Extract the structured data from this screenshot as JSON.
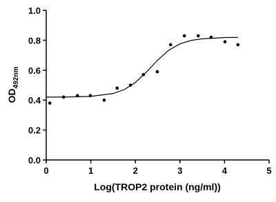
{
  "chart_data": {
    "type": "scatter",
    "xlabel": "Log(TROP2 protein (ng/ml))",
    "ylabel": "OD",
    "ylabel_sub": "492nm",
    "xlim": [
      0,
      5
    ],
    "xticks": [
      0,
      1,
      2,
      3,
      4,
      5
    ],
    "ylim": [
      0,
      1
    ],
    "yticks": [
      {
        "value": 0,
        "label": "0.0"
      },
      0.2,
      0.4,
      0.6,
      0.8,
      {
        "value": 1,
        "label": "1.0"
      }
    ],
    "series": [
      {
        "type": "scatter",
        "color": "#000000",
        "x": [
          0.08,
          0.39,
          0.7,
          0.99,
          1.3,
          1.59,
          1.89,
          2.18,
          2.49,
          2.79,
          3.1,
          3.41,
          3.7,
          4.01,
          4.3
        ],
        "values": [
          0.38,
          0.42,
          0.43,
          0.43,
          0.4,
          0.48,
          0.5,
          0.57,
          0.59,
          0.77,
          0.83,
          0.83,
          0.82,
          0.79,
          0.77
        ]
      },
      {
        "type": "line",
        "color": "#000000",
        "x": [
          0,
          0.5,
          1,
          1.5,
          1.75,
          2,
          2.25,
          2.5,
          2.75,
          3,
          3.25,
          3.5,
          4,
          4.3
        ],
        "values": [
          0.42,
          0.421,
          0.425,
          0.444,
          0.47,
          0.518,
          0.588,
          0.667,
          0.734,
          0.776,
          0.799,
          0.81,
          0.818,
          0.819
        ]
      }
    ]
  }
}
